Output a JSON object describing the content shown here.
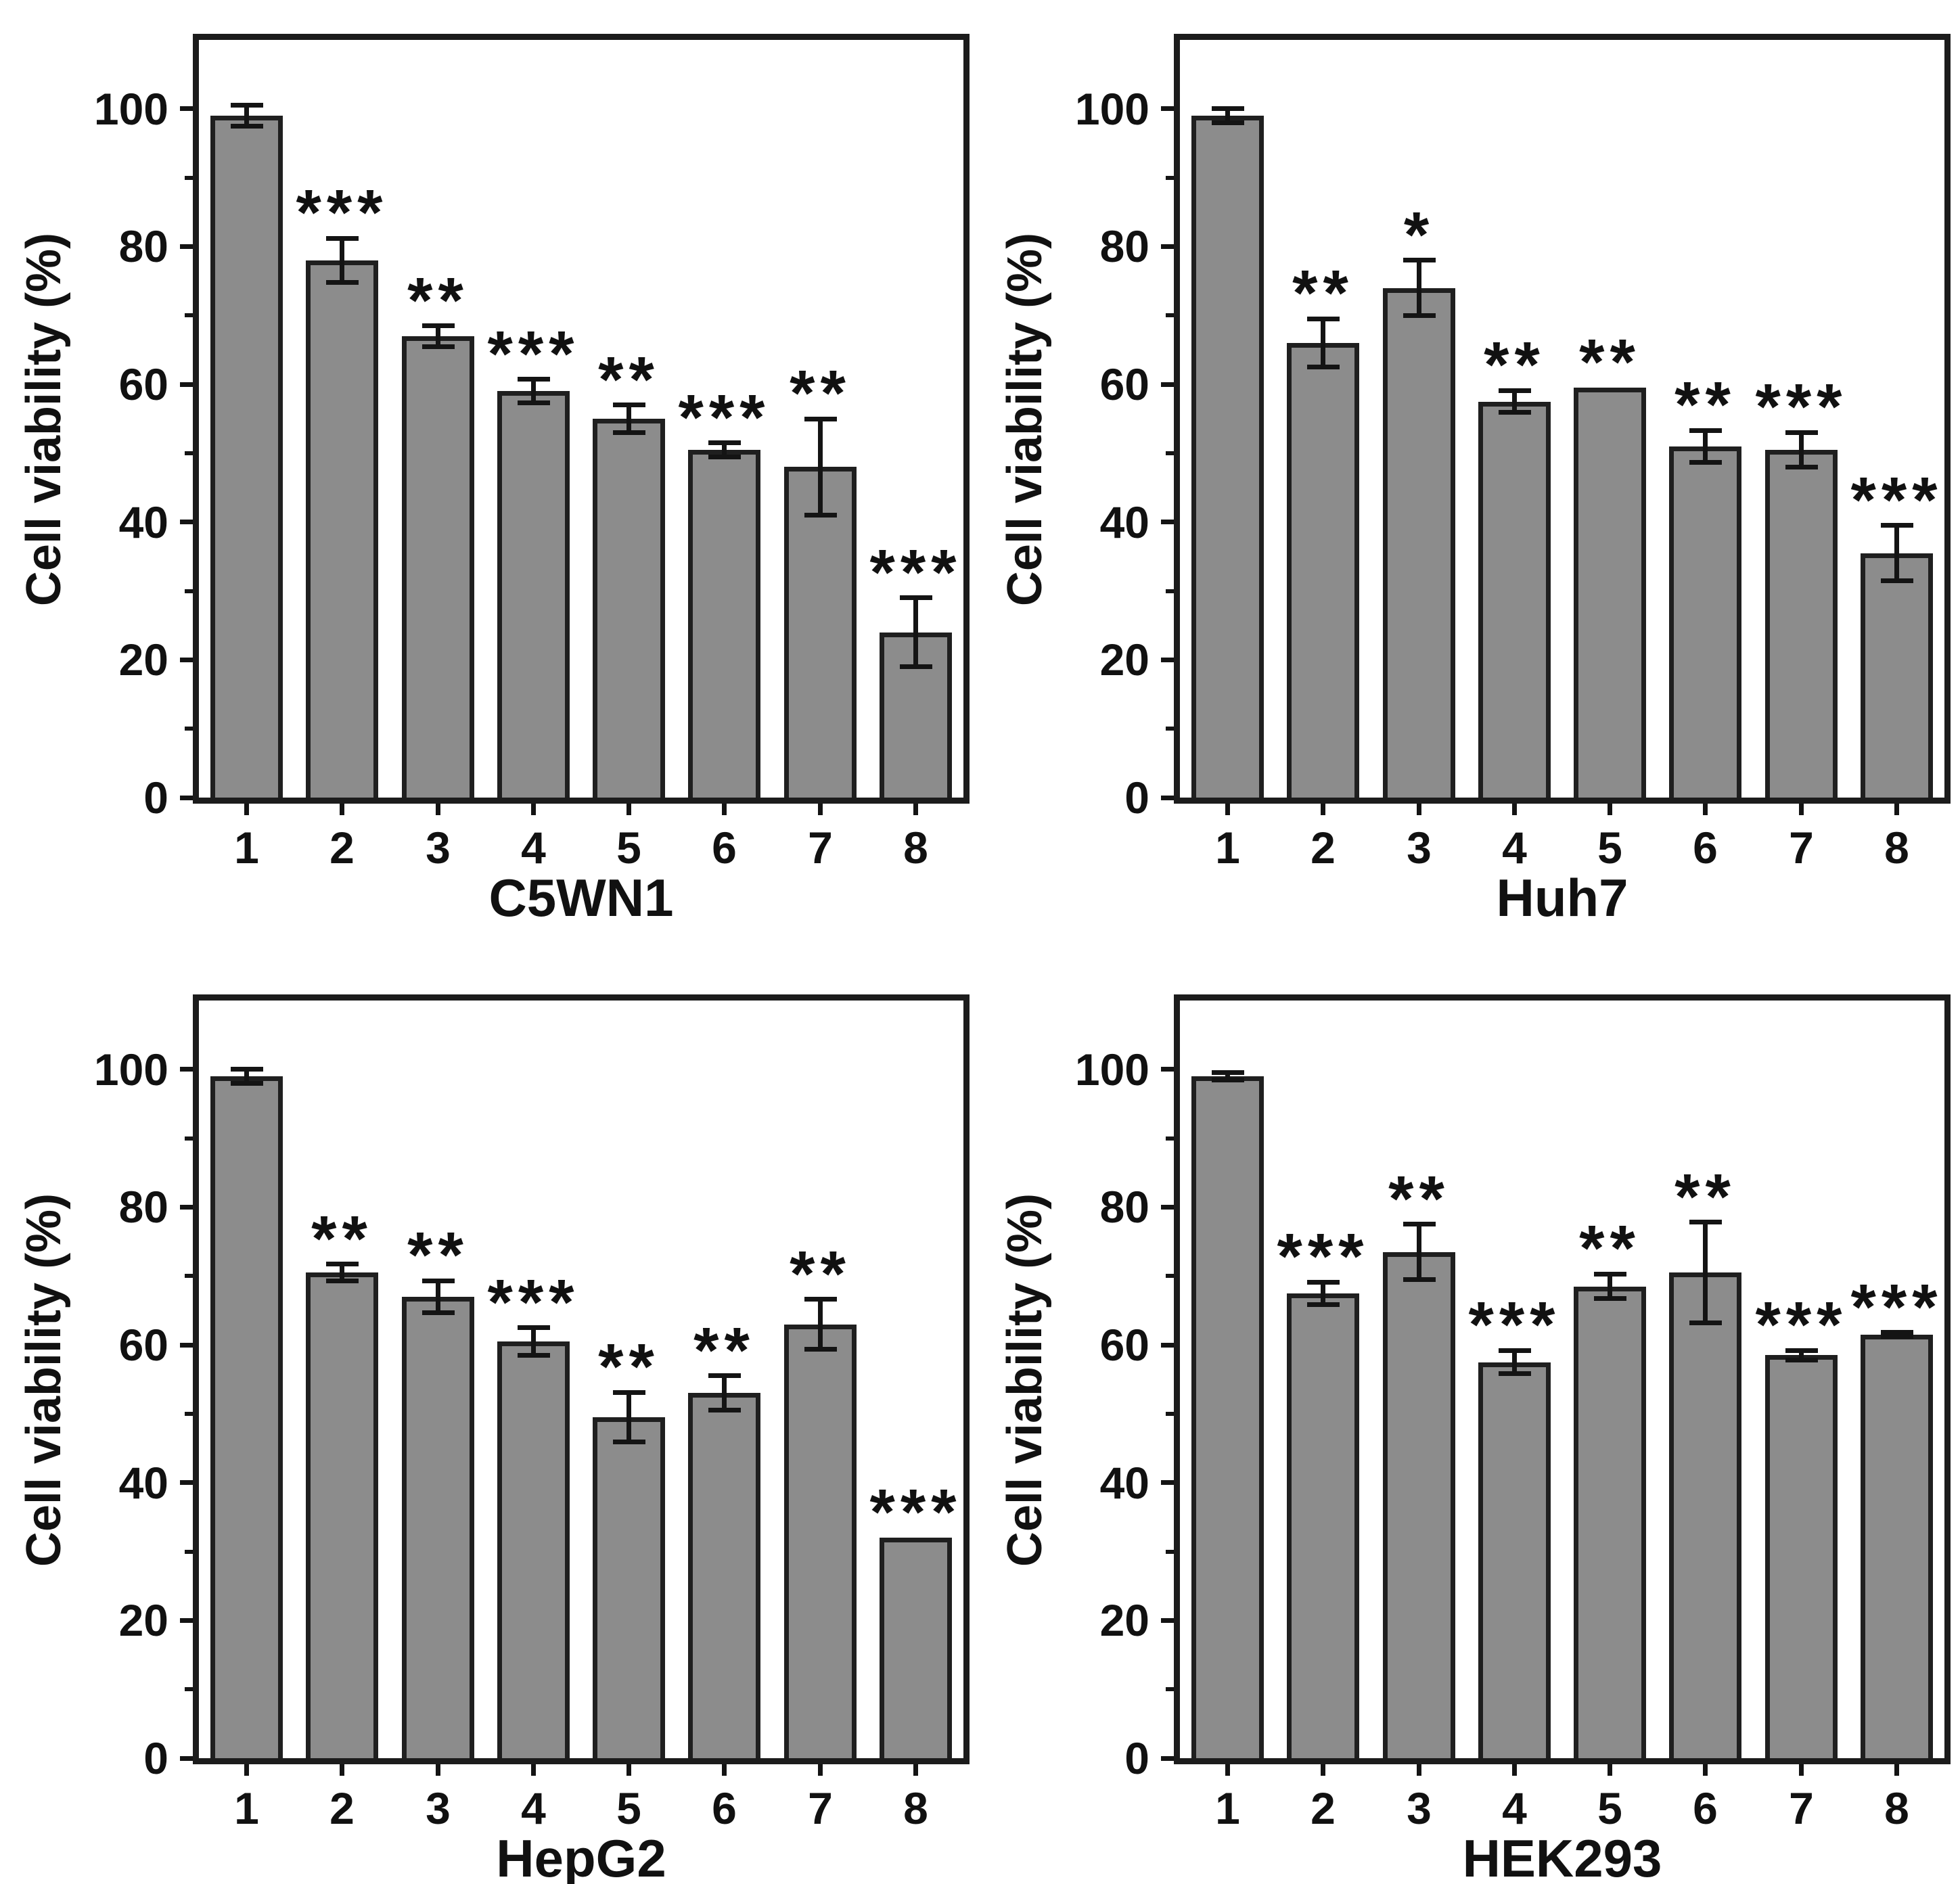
{
  "figure": {
    "ylabel": "Cell viability (%)",
    "ylim": [
      0,
      110
    ],
    "yticks": [
      0,
      20,
      40,
      60,
      80,
      100
    ],
    "yminorticks": [
      10,
      30,
      50,
      70,
      90
    ],
    "grid": false,
    "legend": "none",
    "bar_fill": "#8c8c8c",
    "bar_border": "#1f1f1f",
    "axis_color": "#1c1c1c",
    "significance_note_symbols": [
      "*",
      "**",
      "***"
    ]
  },
  "chart_data": [
    {
      "type": "bar",
      "title": "C5WN1",
      "xlabel": "C5WN1",
      "ylabel": "Cell viability (%)",
      "ylim": [
        0,
        110
      ],
      "categories": [
        "1",
        "2",
        "3",
        "4",
        "5",
        "6",
        "7",
        "8"
      ],
      "values": [
        99,
        78,
        67,
        59,
        55,
        50.5,
        48,
        24
      ],
      "errors": [
        1.5,
        3.2,
        1.5,
        1.7,
        2,
        1,
        7,
        5
      ],
      "significance": [
        "",
        "***",
        "**",
        "***",
        "**",
        "***",
        "**",
        "***"
      ]
    },
    {
      "type": "bar",
      "title": "Huh7",
      "xlabel": "Huh7",
      "ylabel": "Cell viability (%)",
      "ylim": [
        0,
        110
      ],
      "categories": [
        "1",
        "2",
        "3",
        "4",
        "5",
        "6",
        "7",
        "8"
      ],
      "values": [
        99,
        66,
        74,
        57.5,
        59.5,
        51,
        50.5,
        35.5
      ],
      "errors": [
        1,
        3.5,
        4,
        1.6,
        0,
        2.3,
        2.5,
        4
      ],
      "significance": [
        "",
        "**",
        "*",
        "**",
        "**",
        "**",
        "***",
        "***"
      ]
    },
    {
      "type": "bar",
      "title": "HepG2",
      "xlabel": "HepG2",
      "ylabel": "Cell viability (%)",
      "ylim": [
        0,
        110
      ],
      "categories": [
        "1",
        "2",
        "3",
        "4",
        "5",
        "6",
        "7",
        "8"
      ],
      "values": [
        99,
        70.5,
        67,
        60.5,
        49.5,
        53,
        63,
        32
      ],
      "errors": [
        1,
        1.2,
        2.3,
        2,
        3.6,
        2.5,
        3.6,
        0
      ],
      "significance": [
        "",
        "**",
        "**",
        "***",
        "**",
        "**",
        "**",
        "***"
      ]
    },
    {
      "type": "bar",
      "title": "HEK293",
      "xlabel": "HEK293",
      "ylabel": "Cell viability (%)",
      "ylim": [
        0,
        110
      ],
      "categories": [
        "1",
        "2",
        "3",
        "4",
        "5",
        "6",
        "7",
        "8"
      ],
      "values": [
        99,
        67.5,
        73.5,
        57.5,
        68.5,
        70.5,
        58.5,
        61.5
      ],
      "errors": [
        0.5,
        1.6,
        4,
        1.7,
        1.8,
        7.3,
        0.7,
        0.3
      ],
      "significance": [
        "",
        "***",
        "**",
        "***",
        "**",
        "**",
        "***",
        "***"
      ]
    }
  ]
}
